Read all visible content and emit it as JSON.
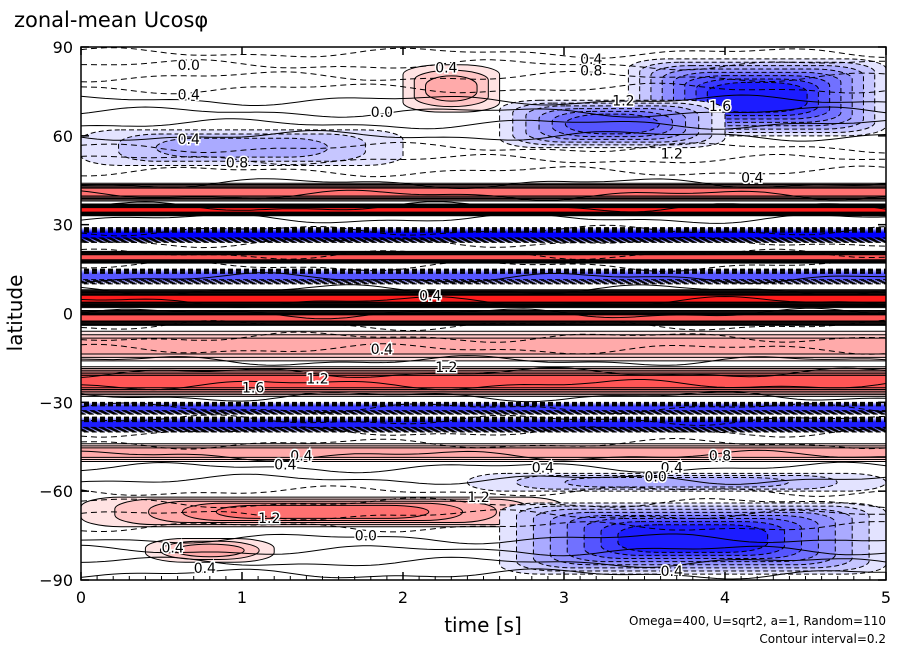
{
  "title": "zonal-mean Ucosφ",
  "notes": {
    "params": "Omega=400, U=sqrt2, a=1, Random=110",
    "contour_interval": "Contour interval=0.2"
  },
  "colors": {
    "positive": "#ff0000",
    "negative": "#0000ff",
    "contour": "#000000"
  },
  "chart_data": {
    "type": "heatmap",
    "title": "zonal-mean Ucosφ",
    "xlabel": "time [s]",
    "ylabel": "latitude",
    "xlim": [
      0,
      5
    ],
    "ylim": [
      -90,
      90
    ],
    "x_ticks": [
      "0",
      "1",
      "2",
      "3",
      "4",
      "5"
    ],
    "y_ticks": [
      "90",
      "60",
      "30",
      "0",
      "−30",
      "−60",
      "−90"
    ],
    "contour_interval": 0.2,
    "bands": [
      {
        "lat_min": 68,
        "lat_max": 84,
        "t_start": 2.0,
        "t_end": 2.6,
        "value": 0.6
      },
      {
        "lat_min": 60,
        "lat_max": 86,
        "t_start": 3.4,
        "t_end": 5.0,
        "value": -1.6
      },
      {
        "lat_min": 56,
        "lat_max": 72,
        "t_start": 2.6,
        "t_end": 4.0,
        "value": -1.2
      },
      {
        "lat_min": 50,
        "lat_max": 62,
        "t_start": 0.0,
        "t_end": 2.0,
        "value": -0.6
      },
      {
        "lat_min": 38,
        "lat_max": 44,
        "t_start": 0.0,
        "t_end": 5.0,
        "value": 1.0
      },
      {
        "lat_min": 33,
        "lat_max": 37,
        "t_start": 0.0,
        "t_end": 5.0,
        "value": 1.6
      },
      {
        "lat_min": 24,
        "lat_max": 29,
        "t_start": 0.0,
        "t_end": 5.0,
        "value": -1.8
      },
      {
        "lat_min": 17,
        "lat_max": 21,
        "t_start": 0.0,
        "t_end": 5.0,
        "value": 1.2
      },
      {
        "lat_min": 10,
        "lat_max": 15,
        "t_start": 0.0,
        "t_end": 5.0,
        "value": -1.2
      },
      {
        "lat_min": 2,
        "lat_max": 8,
        "t_start": 0.0,
        "t_end": 5.0,
        "value": 1.6
      },
      {
        "lat_min": -4,
        "lat_max": 1,
        "t_start": 0.0,
        "t_end": 5.0,
        "value": 1.2
      },
      {
        "lat_min": -16,
        "lat_max": -6,
        "t_start": 0.0,
        "t_end": 5.0,
        "value": 0.6
      },
      {
        "lat_min": -28,
        "lat_max": -18,
        "t_start": 0.0,
        "t_end": 5.0,
        "value": 1.2
      },
      {
        "lat_min": -34,
        "lat_max": -30,
        "t_start": 0.0,
        "t_end": 5.0,
        "value": -1.4
      },
      {
        "lat_min": -40,
        "lat_max": -35,
        "t_start": 0.0,
        "t_end": 5.0,
        "value": -1.6
      },
      {
        "lat_min": -50,
        "lat_max": -44,
        "t_start": 0.0,
        "t_end": 5.0,
        "value": 0.6
      },
      {
        "lat_min": -60,
        "lat_max": -54,
        "t_start": 2.4,
        "t_end": 5.0,
        "value": -0.6
      },
      {
        "lat_min": -72,
        "lat_max": -62,
        "t_start": 0.0,
        "t_end": 3.0,
        "value": 1.0
      },
      {
        "lat_min": -88,
        "lat_max": -64,
        "t_start": 2.6,
        "t_end": 5.0,
        "value": -1.6
      },
      {
        "lat_min": -84,
        "lat_max": -76,
        "t_start": 0.4,
        "t_end": 1.2,
        "value": 0.6
      }
    ],
    "labels": [
      {
        "text": "0.0",
        "x": 0.6,
        "y": 84
      },
      {
        "text": "0.4",
        "x": 2.2,
        "y": 83
      },
      {
        "text": "0.4",
        "x": 3.1,
        "y": 86
      },
      {
        "text": "0.8",
        "x": 3.1,
        "y": 82
      },
      {
        "text": "1.2",
        "x": 3.3,
        "y": 72
      },
      {
        "text": "1.6",
        "x": 3.9,
        "y": 70
      },
      {
        "text": "0.4",
        "x": 0.6,
        "y": 74
      },
      {
        "text": "0.0",
        "x": 1.8,
        "y": 68
      },
      {
        "text": "0.4",
        "x": 0.6,
        "y": 59
      },
      {
        "text": "0.8",
        "x": 0.9,
        "y": 51
      },
      {
        "text": "1.2",
        "x": 3.6,
        "y": 54
      },
      {
        "text": "0.4",
        "x": 4.1,
        "y": 46
      },
      {
        "text": "0.4",
        "x": 2.1,
        "y": 6
      },
      {
        "text": "0.4",
        "x": 1.8,
        "y": -12
      },
      {
        "text": "1.2",
        "x": 2.2,
        "y": -18
      },
      {
        "text": "1.6",
        "x": 1.0,
        "y": -25
      },
      {
        "text": "1.2",
        "x": 1.4,
        "y": -22
      },
      {
        "text": "0.4",
        "x": 1.3,
        "y": -48
      },
      {
        "text": "0.4",
        "x": 2.8,
        "y": -52
      },
      {
        "text": "0.8",
        "x": 3.9,
        "y": -48
      },
      {
        "text": "0.4",
        "x": 3.6,
        "y": -52
      },
      {
        "text": "0.0",
        "x": 3.5,
        "y": -55
      },
      {
        "text": "1.2",
        "x": 2.4,
        "y": -62
      },
      {
        "text": "1.2",
        "x": 1.1,
        "y": -69
      },
      {
        "text": "0.0",
        "x": 1.7,
        "y": -75
      },
      {
        "text": "0.4",
        "x": 0.5,
        "y": -79
      },
      {
        "text": "0.4",
        "x": 0.7,
        "y": -86
      },
      {
        "text": "0.4",
        "x": 3.6,
        "y": -87
      },
      {
        "text": "0.4",
        "x": 1.2,
        "y": -51
      }
    ]
  }
}
